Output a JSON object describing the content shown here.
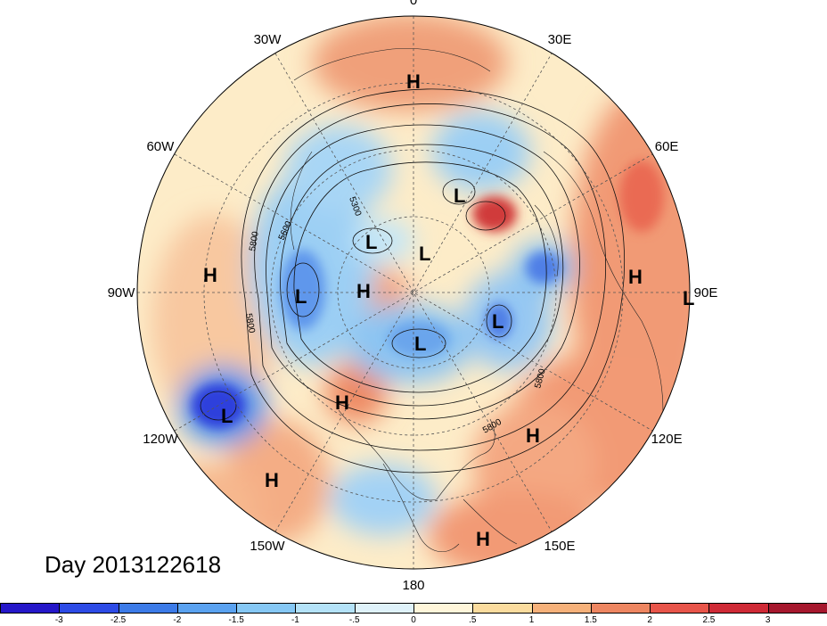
{
  "title": "Day 2013122618",
  "longitude_labels": [
    {
      "text": "90E",
      "lon": 90
    },
    {
      "text": "60E",
      "lon": 60
    },
    {
      "text": "30E",
      "lon": 30
    },
    {
      "text": "0",
      "lon": 0
    },
    {
      "text": "30W",
      "lon": -30
    },
    {
      "text": "60W",
      "lon": -60
    },
    {
      "text": "90W",
      "lon": -90
    },
    {
      "text": "120W",
      "lon": -120
    },
    {
      "text": "150W",
      "lon": -150
    },
    {
      "text": "180",
      "lon": 180
    },
    {
      "text": "150E",
      "lon": 150
    },
    {
      "text": "120E",
      "lon": 120
    }
  ],
  "pressure_centers": [
    "H",
    "H",
    "H",
    "H",
    "H",
    "H",
    "H",
    "H",
    "L",
    "L",
    "L",
    "L",
    "L",
    "L",
    "L",
    "L"
  ],
  "contour_labels": [
    "5800",
    "5600",
    "5300",
    "5800",
    "5800",
    "5800",
    "5800"
  ],
  "colorbar": {
    "ticks": [
      "-3",
      "-2.5",
      "-2",
      "-1.5",
      "-1",
      "-.5",
      "0",
      ".5",
      "1",
      "1.5",
      "2",
      "2.5",
      "3"
    ],
    "colors": [
      "#2517c9",
      "#2d4be6",
      "#3c7be8",
      "#5aa2f0",
      "#86c8f5",
      "#b4e2f8",
      "#dff2fa",
      "#fff6da",
      "#fbdc9e",
      "#f6b17a",
      "#ee8661",
      "#e8554a",
      "#cf2a36",
      "#a6172d"
    ]
  }
}
